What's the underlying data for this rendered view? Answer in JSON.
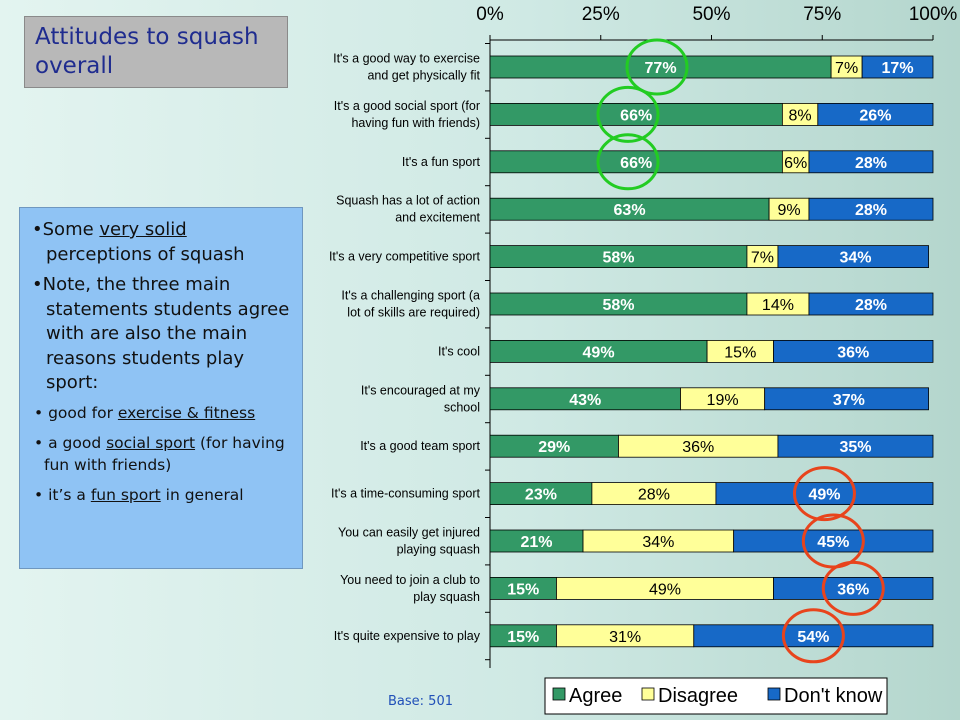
{
  "title": "Attitudes to squash overall",
  "notes": {
    "p1": {
      "bullet": "•",
      "pre": "Some ",
      "u": "very solid",
      "post": " perceptions of squash"
    },
    "p2": {
      "bullet": "•",
      "text": "Note, the three main statements students agree with are also the main reasons students play sport:"
    },
    "b1": {
      "bullet": "•",
      "pre": " good for ",
      "u": "exercise & fitness",
      "post": ""
    },
    "b2": {
      "bullet": "•",
      "pre": " a good ",
      "u": "social sport",
      "post": " (for having fun with friends)"
    },
    "b3": {
      "bullet": "•",
      "pre": " it’s a ",
      "u": "fun sport",
      "post": " in general"
    }
  },
  "base": "Base: 501",
  "chart_data": {
    "type": "bar",
    "orientation": "horizontal",
    "stacked": true,
    "xlim": [
      0,
      100
    ],
    "x_ticks": [
      "0%",
      "25%",
      "50%",
      "75%",
      "100%"
    ],
    "categories": [
      [
        "It's a good way to exercise",
        "and get physically fit"
      ],
      [
        "It's a good social sport (for",
        "having fun with friends)"
      ],
      [
        "It's a fun sport"
      ],
      [
        "Squash has a lot of action",
        "and excitement"
      ],
      [
        "It's a very competitive sport"
      ],
      [
        "It's a challenging sport (a",
        "lot of skills are required)"
      ],
      [
        "It's cool"
      ],
      [
        "It's encouraged at my",
        "school"
      ],
      [
        "It's a good team sport"
      ],
      [
        "It's a time-consuming sport"
      ],
      [
        "You can easily get injured",
        "playing squash"
      ],
      [
        "You need to join a club to",
        "play squash"
      ],
      [
        "It's quite expensive to play"
      ]
    ],
    "series": [
      {
        "name": "Agree",
        "color": "#339966",
        "values": [
          77,
          66,
          66,
          63,
          58,
          58,
          49,
          43,
          29,
          23,
          21,
          15,
          15
        ]
      },
      {
        "name": "Disagree",
        "color": "#ffff99",
        "values": [
          7,
          8,
          6,
          9,
          7,
          14,
          15,
          19,
          36,
          28,
          34,
          49,
          31
        ]
      },
      {
        "name": "Don't know",
        "color": "#1769c7",
        "values": [
          17,
          26,
          28,
          28,
          34,
          28,
          36,
          37,
          35,
          49,
          45,
          36,
          54
        ]
      }
    ],
    "legend_position": "bottom",
    "highlight_green": [
      0,
      1,
      2
    ],
    "highlight_red": [
      9,
      10,
      11,
      12
    ]
  }
}
